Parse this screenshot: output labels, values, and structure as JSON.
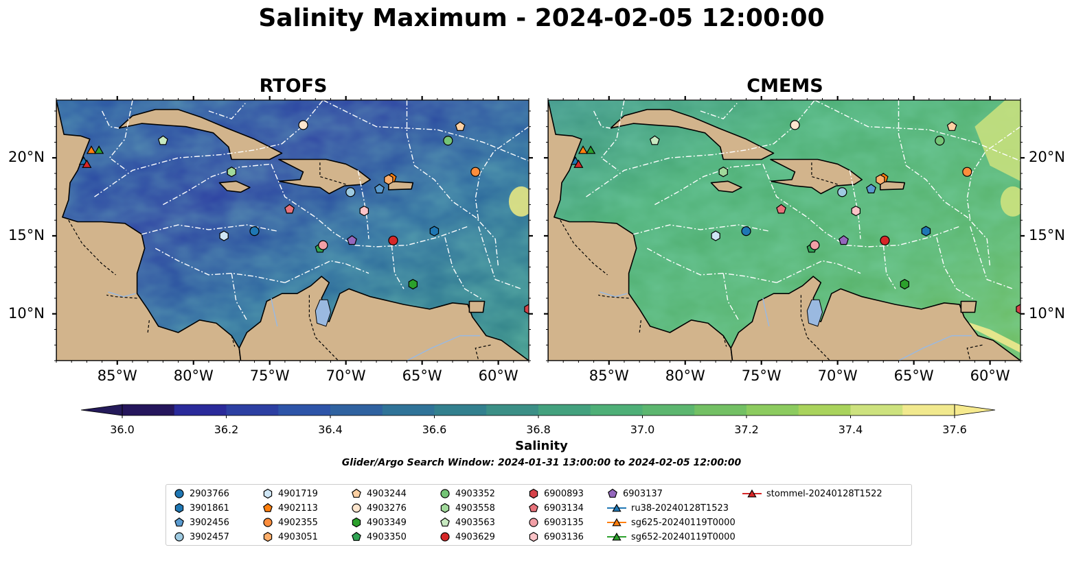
{
  "figure": {
    "title": "Salinity Maximum - 2024-02-05 12:00:00",
    "search_window": "Glider/Argo Search Window: 2024-01-31 13:00:00 to 2024-02-05 12:00:00"
  },
  "map_extent": {
    "lon_min": -89,
    "lon_max": -58,
    "lat_min": 7,
    "lat_max": 23.7
  },
  "panels": [
    {
      "title": "RTOFS",
      "left_labels": true,
      "right_labels": false
    },
    {
      "title": "CMEMS",
      "left_labels": false,
      "right_labels": true
    }
  ],
  "axes": {
    "lat_ticks": [
      {
        "lat": 20,
        "label": "20°N"
      },
      {
        "lat": 15,
        "label": "15°N"
      },
      {
        "lat": 10,
        "label": "10°N"
      }
    ],
    "lon_ticks": [
      {
        "lon": -85,
        "label": "85°W"
      },
      {
        "lon": -80,
        "label": "80°W"
      },
      {
        "lon": -75,
        "label": "75°W"
      },
      {
        "lon": -70,
        "label": "70°W"
      },
      {
        "lon": -65,
        "label": "65°W"
      },
      {
        "lon": -60,
        "label": "60°W"
      }
    ]
  },
  "colorbar": {
    "label": "Salinity",
    "min": 36.0,
    "max": 37.6,
    "extend": "both",
    "ticks": [
      {
        "value": 36.0,
        "label": "36.0"
      },
      {
        "value": 36.2,
        "label": "36.2"
      },
      {
        "value": 36.4,
        "label": "36.4"
      },
      {
        "value": 36.6,
        "label": "36.6"
      },
      {
        "value": 36.8,
        "label": "36.8"
      },
      {
        "value": 37.0,
        "label": "37.0"
      },
      {
        "value": 37.2,
        "label": "37.2"
      },
      {
        "value": 37.4,
        "label": "37.4"
      },
      {
        "value": 37.6,
        "label": "37.6"
      }
    ],
    "colors": [
      "#25165c",
      "#2a2a9a",
      "#2c3fa2",
      "#2d54a8",
      "#2f62a0",
      "#2f7398",
      "#32808e",
      "#3b8f86",
      "#43a17e",
      "#4eaf77",
      "#5cb66f",
      "#73c064",
      "#8ccb5f",
      "#a9d35c",
      "#cde27e",
      "#f1e98e"
    ],
    "under_color": "#241a5a",
    "over_color": "#f6ea8e"
  },
  "colors": {
    "land": "#d2b48c",
    "lake": "#9ab9e0",
    "eez_lines": "#ffffff"
  },
  "platforms": [
    {
      "id": "2903766",
      "marker": "circle",
      "color": "#1f77b4",
      "lon": -76.0,
      "lat": 15.3
    },
    {
      "id": "3901861",
      "marker": "hexagon",
      "color": "#1f77b4",
      "lon": -64.2,
      "lat": 15.3
    },
    {
      "id": "3902456",
      "marker": "pentagon",
      "color": "#5a9bd0",
      "lon": -67.8,
      "lat": 18.0
    },
    {
      "id": "3902457",
      "marker": "circle",
      "color": "#9ecae1",
      "lon": -69.7,
      "lat": 17.8
    },
    {
      "id": "4901719",
      "marker": "hexagon",
      "color": "#cfe6f5",
      "lon": -78.0,
      "lat": 15.0
    },
    {
      "id": "4902113",
      "marker": "pentagon",
      "color": "#ff7f0e",
      "lon": -67.0,
      "lat": 18.7
    },
    {
      "id": "4902355",
      "marker": "circle",
      "color": "#fd8d3c",
      "lon": -61.5,
      "lat": 19.1
    },
    {
      "id": "4903051",
      "marker": "hexagon",
      "color": "#fdae6b",
      "lon": -67.2,
      "lat": 18.6
    },
    {
      "id": "4903244",
      "marker": "pentagon",
      "color": "#fdd0a2",
      "lon": -62.5,
      "lat": 22.0
    },
    {
      "id": "4903276",
      "marker": "circle",
      "color": "#fee6ce",
      "lon": -72.8,
      "lat": 22.1
    },
    {
      "id": "4903349",
      "marker": "hexagon",
      "color": "#2ca02c",
      "lon": -65.6,
      "lat": 11.9
    },
    {
      "id": "4903350",
      "marker": "pentagon",
      "color": "#31a354",
      "lon": -71.7,
      "lat": 14.2
    },
    {
      "id": "4903352",
      "marker": "circle",
      "color": "#74c476",
      "lon": -63.3,
      "lat": 21.1
    },
    {
      "id": "4903558",
      "marker": "hexagon",
      "color": "#a1d99b",
      "lon": -77.5,
      "lat": 19.1
    },
    {
      "id": "4903563",
      "marker": "pentagon",
      "color": "#c7e9c0",
      "lon": -82.0,
      "lat": 21.1
    },
    {
      "id": "4903629",
      "marker": "circle",
      "color": "#d62728",
      "lon": -66.9,
      "lat": 14.7
    },
    {
      "id": "6900893",
      "marker": "hexagon",
      "color": "#d6434a",
      "lon": -58.0,
      "lat": 10.3
    },
    {
      "id": "6903134",
      "marker": "pentagon",
      "color": "#e7727a",
      "lon": -73.7,
      "lat": 16.7
    },
    {
      "id": "6903135",
      "marker": "circle",
      "color": "#f29fa6",
      "lon": -71.5,
      "lat": 14.4
    },
    {
      "id": "6903136",
      "marker": "hexagon",
      "color": "#fbc3c7",
      "lon": -68.8,
      "lat": 16.6
    },
    {
      "id": "6903137",
      "marker": "pentagon",
      "color": "#9467bd",
      "lon": -69.6,
      "lat": 14.7
    },
    {
      "id": "ru38-20240128T1523",
      "marker": "triangle",
      "line": true,
      "color": "#1f77b4",
      "lon": -87.2,
      "lat": 19.8
    },
    {
      "id": "sg625-20240119T0000",
      "marker": "triangle",
      "line": true,
      "color": "#ff7f0e",
      "lon": -86.7,
      "lat": 20.5
    },
    {
      "id": "sg652-20240119T0000",
      "marker": "triangle",
      "line": true,
      "color": "#2ca02c",
      "lon": -86.2,
      "lat": 20.5
    },
    {
      "id": "stommel-20240128T1522",
      "marker": "triangle",
      "line": true,
      "color": "#d62728",
      "lon": -87.0,
      "lat": 19.6
    }
  ]
}
